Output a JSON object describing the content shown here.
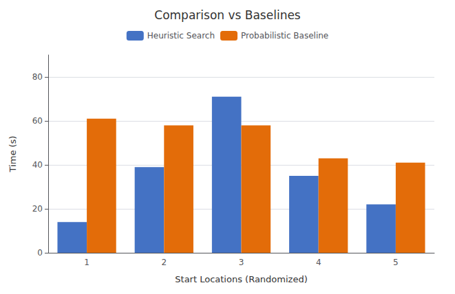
{
  "chart_data": {
    "type": "bar",
    "title": "Comparison vs Baselines",
    "xlabel": "Start Locations (Randomized)",
    "ylabel": "Time (s)",
    "categories": [
      1,
      2,
      3,
      4,
      5
    ],
    "series": [
      {
        "name": "Heuristic Search",
        "color": "#4472C4",
        "values": [
          14,
          39,
          71,
          35,
          22
        ]
      },
      {
        "name": "Probabilistic Baseline",
        "color": "#E36C09",
        "values": [
          61,
          58,
          58,
          43,
          41
        ]
      }
    ],
    "ylim": [
      0,
      90
    ],
    "yticks": [
      0,
      20,
      40,
      60,
      80
    ],
    "grid": true,
    "legend": "top"
  }
}
